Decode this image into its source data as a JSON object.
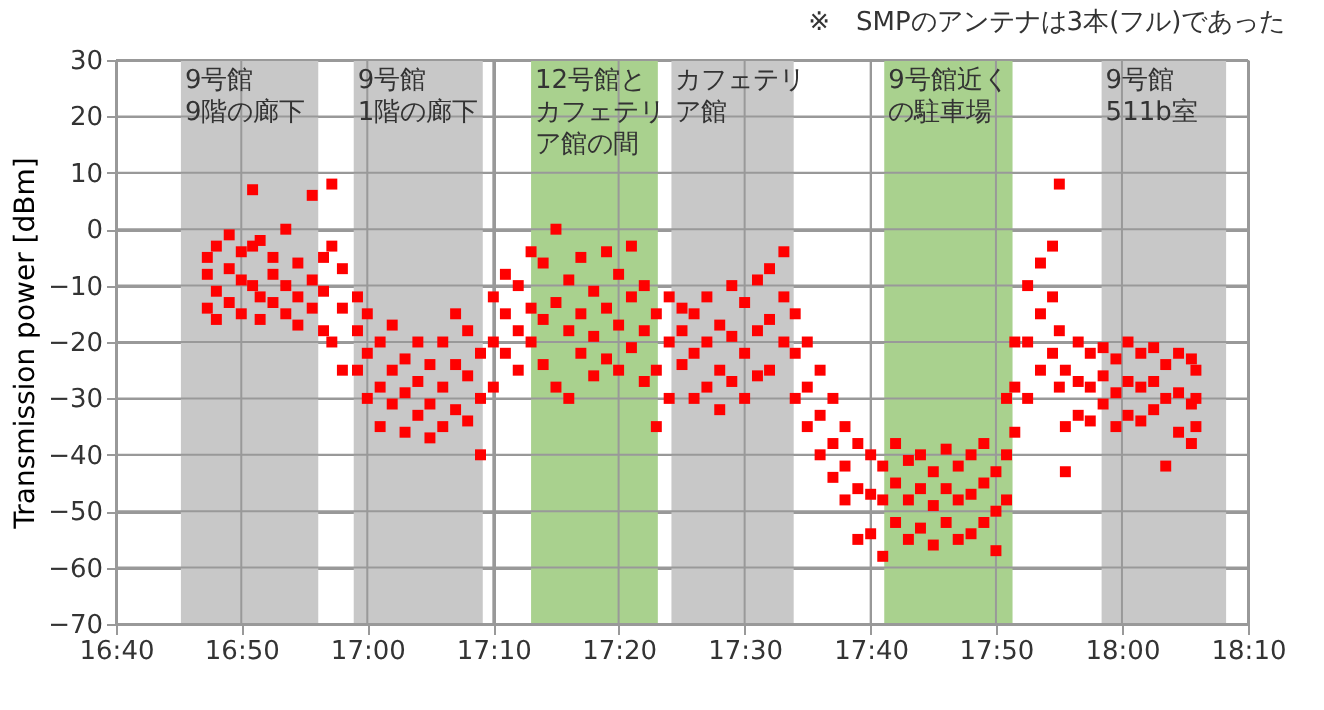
{
  "chart_data": {
    "type": "scatter",
    "ylabel": "Transmission power [dBm]",
    "annotations": [
      "※　SMPのアンテナは3本(フル)であった"
    ],
    "xlim": [
      16.667,
      18.167
    ],
    "xticks": [
      {
        "value": 16.667,
        "label": "16:40"
      },
      {
        "value": 16.833,
        "label": "16:50"
      },
      {
        "value": 17,
        "label": "17:00"
      },
      {
        "value": 17.167,
        "label": "17:10"
      },
      {
        "value": 17.333,
        "label": "17:20"
      },
      {
        "value": 17.5,
        "label": "17:30"
      },
      {
        "value": 17.667,
        "label": "17:40"
      },
      {
        "value": 17.833,
        "label": "17:50"
      },
      {
        "value": 18,
        "label": "18:00"
      },
      {
        "value": 18.167,
        "label": "18:10"
      }
    ],
    "ylim": [
      -70,
      30
    ],
    "yticks": [
      -70,
      -60,
      -50,
      -40,
      -30,
      -20,
      -10,
      0,
      10,
      20,
      30
    ],
    "grid": true,
    "marker": "square",
    "bands": [
      {
        "axis": "x",
        "from": 16.753,
        "to": 16.935,
        "label": "9号館\n9階の廊下",
        "color": "#c8c8c8"
      },
      {
        "axis": "x",
        "from": 16.982,
        "to": 17.153,
        "label": "9号館\n1階の廊下",
        "color": "#c8c8c8"
      },
      {
        "axis": "x",
        "from": 17.217,
        "to": 17.385,
        "label": "12号館とカフェテリア館の間",
        "color": "#a9d18e"
      },
      {
        "axis": "x",
        "from": 17.403,
        "to": 17.565,
        "label": "カフェテリア館",
        "color": "#c8c8c8"
      },
      {
        "axis": "x",
        "from": 17.685,
        "to": 17.855,
        "label": "9号館近くの駐車場",
        "color": "#a9d18e"
      },
      {
        "axis": "x",
        "from": 17.973,
        "to": 18.138,
        "label": "9号館\n511b室",
        "color": "#c8c8c8"
      }
    ],
    "series": [
      {
        "color": "#ff0000",
        "x": [
          16.788,
          16.788,
          16.788,
          16.8,
          16.8,
          16.8,
          16.817,
          16.817,
          16.817,
          16.833,
          16.833,
          16.833,
          16.848,
          16.848,
          16.848,
          16.858,
          16.858,
          16.858,
          16.875,
          16.875,
          16.875,
          16.892,
          16.892,
          16.892,
          16.908,
          16.908,
          16.908,
          16.927,
          16.927,
          16.927,
          16.942,
          16.942,
          16.942,
          16.953,
          16.953,
          16.953,
          16.967,
          16.967,
          16.967,
          16.987,
          16.987,
          16.987,
          17.0,
          17.0,
          17.0,
          17.017,
          17.017,
          17.017,
          17.033,
          17.033,
          17.033,
          17.05,
          17.05,
          17.05,
          17.067,
          17.067,
          17.067,
          17.083,
          17.083,
          17.083,
          17.1,
          17.1,
          17.1,
          17.117,
          17.117,
          17.117,
          17.133,
          17.133,
          17.133,
          17.15,
          17.15,
          17.15,
          17.167,
          17.167,
          17.167,
          17.183,
          17.183,
          17.183,
          17.2,
          17.2,
          17.2,
          17.217,
          17.217,
          17.217,
          17.233,
          17.233,
          17.233,
          17.25,
          17.25,
          17.25,
          17.267,
          17.267,
          17.267,
          17.283,
          17.283,
          17.283,
          17.3,
          17.3,
          17.3,
          17.317,
          17.317,
          17.317,
          17.333,
          17.333,
          17.333,
          17.35,
          17.35,
          17.35,
          17.367,
          17.367,
          17.367,
          17.383,
          17.383,
          17.383,
          17.4,
          17.4,
          17.4,
          17.417,
          17.417,
          17.417,
          17.433,
          17.433,
          17.433,
          17.45,
          17.45,
          17.45,
          17.467,
          17.467,
          17.467,
          17.483,
          17.483,
          17.483,
          17.5,
          17.5,
          17.5,
          17.517,
          17.517,
          17.517,
          17.533,
          17.533,
          17.533,
          17.552,
          17.552,
          17.552,
          17.567,
          17.567,
          17.567,
          17.583,
          17.583,
          17.583,
          17.6,
          17.6,
          17.6,
          17.617,
          17.617,
          17.617,
          17.633,
          17.633,
          17.633,
          17.65,
          17.65,
          17.65,
          17.667,
          17.667,
          17.667,
          17.683,
          17.683,
          17.683,
          17.7,
          17.7,
          17.7,
          17.717,
          17.717,
          17.717,
          17.733,
          17.733,
          17.733,
          17.75,
          17.75,
          17.75,
          17.767,
          17.767,
          17.767,
          17.783,
          17.783,
          17.783,
          17.8,
          17.8,
          17.8,
          17.817,
          17.817,
          17.817,
          17.833,
          17.833,
          17.833,
          17.847,
          17.847,
          17.847,
          17.858,
          17.858,
          17.858,
          17.875,
          17.875,
          17.875,
          17.892,
          17.892,
          17.892,
          17.908,
          17.908,
          17.908,
          17.917,
          17.917,
          17.917,
          17.925,
          17.925,
          17.925,
          17.942,
          17.942,
          17.942,
          17.958,
          17.958,
          17.958,
          17.975,
          17.975,
          17.975,
          17.992,
          17.992,
          17.992,
          18.008,
          18.008,
          18.008,
          18.025,
          18.025,
          18.025,
          18.042,
          18.042,
          18.042,
          18.058,
          18.058,
          18.058,
          18.075,
          18.075,
          18.075,
          18.092,
          18.092,
          18.092,
          18.098,
          18.098,
          18.098
        ],
        "values": [
          -8,
          -14,
          -5,
          -11,
          -16,
          -3,
          -7,
          -13,
          -1,
          -9,
          -15,
          -4,
          7,
          -10,
          -3,
          -12,
          -16,
          -2,
          -8,
          -13,
          -5,
          -10,
          -15,
          0,
          -6,
          -12,
          -17,
          6,
          -9,
          -14,
          -5,
          -11,
          -18,
          8,
          -3,
          -20,
          -7,
          -14,
          -25,
          -18,
          -25,
          -12,
          -22,
          -30,
          -15,
          -20,
          -28,
          -35,
          -25,
          -31,
          -17,
          -23,
          -29,
          -36,
          -27,
          -33,
          -20,
          -24,
          -31,
          -37,
          -20,
          -28,
          -35,
          -15,
          -24,
          -32,
          -18,
          -26,
          -34,
          -22,
          -30,
          -40,
          -12,
          -20,
          -28,
          -15,
          -22,
          -8,
          -10,
          -18,
          -25,
          -14,
          -20,
          -4,
          -6,
          -16,
          -24,
          0,
          -13,
          -28,
          -9,
          -18,
          -30,
          -5,
          -15,
          -22,
          -11,
          -19,
          -26,
          -4,
          -14,
          -23,
          -8,
          -17,
          -25,
          -3,
          -12,
          -21,
          -10,
          -18,
          -27,
          -15,
          -25,
          -35,
          -12,
          -20,
          -30,
          -18,
          -24,
          -14,
          -15,
          -22,
          -30,
          -12,
          -20,
          -28,
          -17,
          -25,
          -32,
          -10,
          -19,
          -27,
          -13,
          -22,
          -30,
          -9,
          -18,
          -26,
          -7,
          -16,
          -25,
          -4,
          -12,
          -20,
          -15,
          -22,
          -30,
          -20,
          -28,
          -35,
          -25,
          -33,
          -40,
          -30,
          -38,
          -44,
          -35,
          -42,
          -48,
          -38,
          -46,
          -55,
          -40,
          -47,
          -54,
          -42,
          -48,
          -58,
          -38,
          -45,
          -52,
          -41,
          -48,
          -55,
          -40,
          -46,
          -53,
          -43,
          -49,
          -56,
          -39,
          -46,
          -52,
          -42,
          -48,
          -55,
          -40,
          -47,
          -54,
          -38,
          -45,
          -52,
          -43,
          -50,
          -57,
          -30,
          -40,
          -48,
          -20,
          -28,
          -36,
          -10,
          -20,
          -30,
          -6,
          -15,
          -25,
          -3,
          -12,
          -22,
          8,
          -18,
          -28,
          -25,
          -35,
          -43,
          -20,
          -27,
          -33,
          -22,
          -28,
          -34,
          -21,
          -26,
          -31,
          -23,
          -29,
          -35,
          -20,
          -27,
          -33,
          -22,
          -28,
          -34,
          -21,
          -27,
          -32,
          -24,
          -30,
          -42,
          -22,
          -29,
          -36,
          -23,
          -31,
          -38,
          -25,
          -30,
          -35
        ]
      }
    ]
  }
}
